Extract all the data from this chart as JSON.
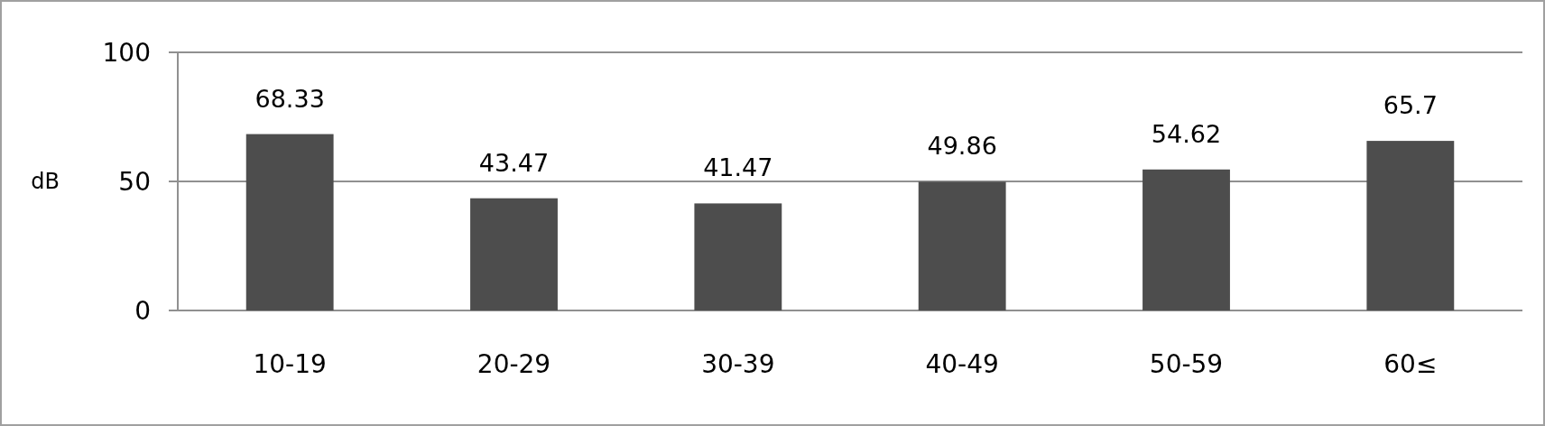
{
  "chart_data": {
    "type": "bar",
    "ylabel": "dB",
    "categories": [
      "10-19",
      "20-29",
      "30-39",
      "40-49",
      "50-59",
      "60≤"
    ],
    "values": [
      68.33,
      43.47,
      41.47,
      49.86,
      54.62,
      65.7
    ],
    "color": "#4d4d4d",
    "ylim": [
      0,
      100
    ],
    "yticks": [
      0,
      50,
      100
    ],
    "grid": "y",
    "data_labels": true
  }
}
